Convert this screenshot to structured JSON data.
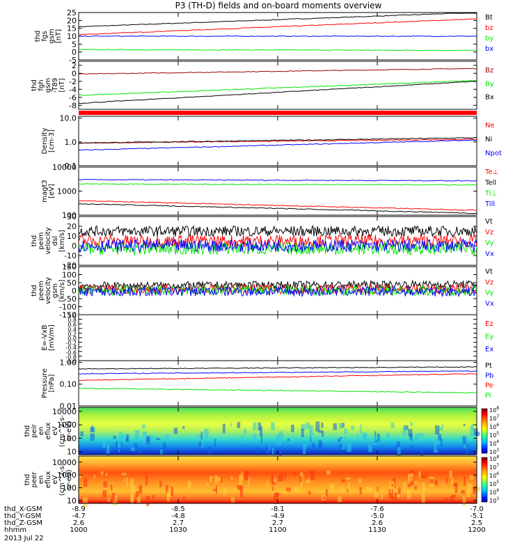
{
  "title": "P3 (TH-D) fields and on-board moments overview",
  "colors": {
    "black": "#000000",
    "red": "#ff0000",
    "green": "#00e600",
    "blue": "#0000ff",
    "darkred": "#9b0000"
  },
  "chart_data": [
    {
      "type": "line",
      "ylabel": [
        "thd",
        "fgs",
        "gsm",
        "[nT]"
      ],
      "ylim": [
        -5,
        25
      ],
      "ticks": [
        "25",
        "20",
        "15",
        "10",
        "5",
        "0",
        "-5"
      ],
      "series": [
        {
          "name": "Bt",
          "color": "black",
          "start": 16,
          "end": 25
        },
        {
          "name": "bz",
          "color": "red",
          "start": 11,
          "end": 21
        },
        {
          "name": "by",
          "color": "green",
          "start": 1.5,
          "end": 1
        },
        {
          "name": "bx",
          "color": "blue",
          "start": 10,
          "end": 10
        }
      ]
    },
    {
      "type": "line",
      "ylabel": [
        "thd",
        "fgh",
        "gsm",
        "-T89",
        "[nT]"
      ],
      "ylim": [
        -9,
        3
      ],
      "ticks": [
        "2",
        "0",
        "-2",
        "-4",
        "-6",
        "-8"
      ],
      "series": [
        {
          "name": "Bz",
          "color": "darkred",
          "start": -0.2,
          "end": 1.2
        },
        {
          "name": "By",
          "color": "green",
          "start": -5.5,
          "end": -1.8
        },
        {
          "name": "Bx",
          "color": "black",
          "start": -7.5,
          "end": -2
        }
      ]
    },
    {
      "type": "line",
      "ylabel": [
        "Density",
        "[cm-3]"
      ],
      "ylim": [
        0.1,
        12
      ],
      "log": true,
      "ticks": [
        "10.0",
        "1.0",
        "0.1"
      ],
      "series": [
        {
          "name": "Ne",
          "color": "red",
          "start": 0.9,
          "end": 1.3
        },
        {
          "name": "Ni",
          "color": "black",
          "start": 0.9,
          "end": 1.5
        },
        {
          "name": "Npot",
          "color": "blue",
          "start": 0.45,
          "end": 1.2
        }
      ]
    },
    {
      "type": "line",
      "ylabel": [
        "magt3",
        "[eV]"
      ],
      "ylim": [
        100,
        10000
      ],
      "log": true,
      "ticks": [
        "10000",
        "1000",
        "100"
      ],
      "series": [
        {
          "name": "Te⊥",
          "color": "red",
          "start": 400,
          "end": 160
        },
        {
          "name": "Tell",
          "color": "black",
          "start": 300,
          "end": 120
        },
        {
          "name": "Ti⊥",
          "color": "green",
          "start": 2000,
          "end": 1800
        },
        {
          "name": "Till",
          "color": "blue",
          "start": 3000,
          "end": 2700
        }
      ]
    },
    {
      "type": "line",
      "ylabel": [
        "thd",
        "peim",
        "velocity",
        "dsl",
        "[km/s]"
      ],
      "ylim": [
        -20,
        30
      ],
      "ticks": [
        "30",
        "20",
        "10",
        "0",
        "-10",
        "-20"
      ],
      "series": [
        {
          "name": "Vt",
          "color": "black",
          "start": 15,
          "end": 15
        },
        {
          "name": "Vz",
          "color": "red",
          "start": 5,
          "end": 5
        },
        {
          "name": "Vy",
          "color": "green",
          "start": -3,
          "end": -3
        },
        {
          "name": "Vx",
          "color": "blue",
          "start": 0,
          "end": 0
        }
      ]
    },
    {
      "type": "line",
      "ylabel": [
        "thd",
        "peem",
        "velocity",
        "gsm",
        "[km/s]"
      ],
      "ylim": [
        -150,
        150
      ],
      "ticks": [
        "150",
        "100",
        "50",
        "0",
        "-50",
        "-100",
        "-150"
      ],
      "series": [
        {
          "name": "Vt",
          "color": "black",
          "start": 30,
          "end": 40
        },
        {
          "name": "Vz",
          "color": "red",
          "start": 10,
          "end": 10
        },
        {
          "name": "Vy",
          "color": "green",
          "start": 0,
          "end": 0
        },
        {
          "name": "Vx",
          "color": "blue",
          "start": -5,
          "end": -5
        }
      ]
    },
    {
      "type": "line",
      "ylabel": [
        "E=-VxB",
        "[mV/m]"
      ],
      "ylim": [
        -1,
        1
      ],
      "ticks": [
        "1.0",
        "0.8",
        "0.6",
        "0.4",
        "0.2",
        "0.0",
        "-0.2",
        "-0.4",
        "-0.6",
        "-0.8",
        "-1.0"
      ],
      "series": [
        {
          "name": "Ez",
          "color": "red"
        },
        {
          "name": "Ey",
          "color": "green"
        },
        {
          "name": "Ex",
          "color": "blue"
        }
      ]
    },
    {
      "type": "line",
      "ylabel": [
        "Pressure",
        "[nPa]"
      ],
      "ylim": [
        0.01,
        1.2
      ],
      "log": true,
      "ticks": [
        "1.00",
        "0.10",
        "0.01"
      ],
      "series": [
        {
          "name": "Pt",
          "color": "black",
          "start": 0.5,
          "end": 0.62
        },
        {
          "name": "Pb",
          "color": "blue",
          "start": 0.3,
          "end": 0.4
        },
        {
          "name": "Pe",
          "color": "red",
          "start": 0.15,
          "end": 0.3
        },
        {
          "name": "Pi",
          "color": "green",
          "start": 0.065,
          "end": 0.04
        }
      ]
    },
    {
      "type": "heatmap",
      "ylabel": [
        "thd",
        "peir",
        "en",
        "eflux",
        "eV",
        "(cm^2-s-",
        "sr-eV)"
      ],
      "ylim": [
        6,
        20000
      ],
      "log": true,
      "ticks": [
        "10000",
        "1000",
        "100",
        "10"
      ],
      "colorbar": [
        "10^8",
        "10^7",
        "10^6",
        "10^5",
        "10^4",
        "10^3"
      ]
    },
    {
      "type": "heatmap",
      "ylabel": [
        "thd",
        "peer",
        "en",
        "eflux",
        "eV",
        "(cm^2-s-",
        "sr-eV)"
      ],
      "ylim": [
        6,
        30000
      ],
      "log": true,
      "ticks": [
        "10000",
        "1000",
        "100",
        "10"
      ],
      "colorbar": [
        "10^8",
        "10^7",
        "10^6",
        "10^5",
        "10^4",
        "10^3"
      ]
    }
  ],
  "xaxis": {
    "rows": [
      {
        "label": "thd_X-GSM",
        "values": [
          "-8.9",
          "-8.5",
          "-8.1",
          "-7.6",
          "-7.0"
        ]
      },
      {
        "label": "thd_Y-GSM",
        "values": [
          "-4.7",
          "-4.8",
          "-4.9",
          "-5.0",
          "-5.1"
        ]
      },
      {
        "label": "thd_Z-GSM",
        "values": [
          "2.6",
          "2.7",
          "2.7",
          "2.6",
          "2.5"
        ]
      },
      {
        "label": "hhmm",
        "values": [
          "1000",
          "1030",
          "1100",
          "1130",
          "1200"
        ]
      }
    ],
    "date": "2013 Jul 22"
  }
}
